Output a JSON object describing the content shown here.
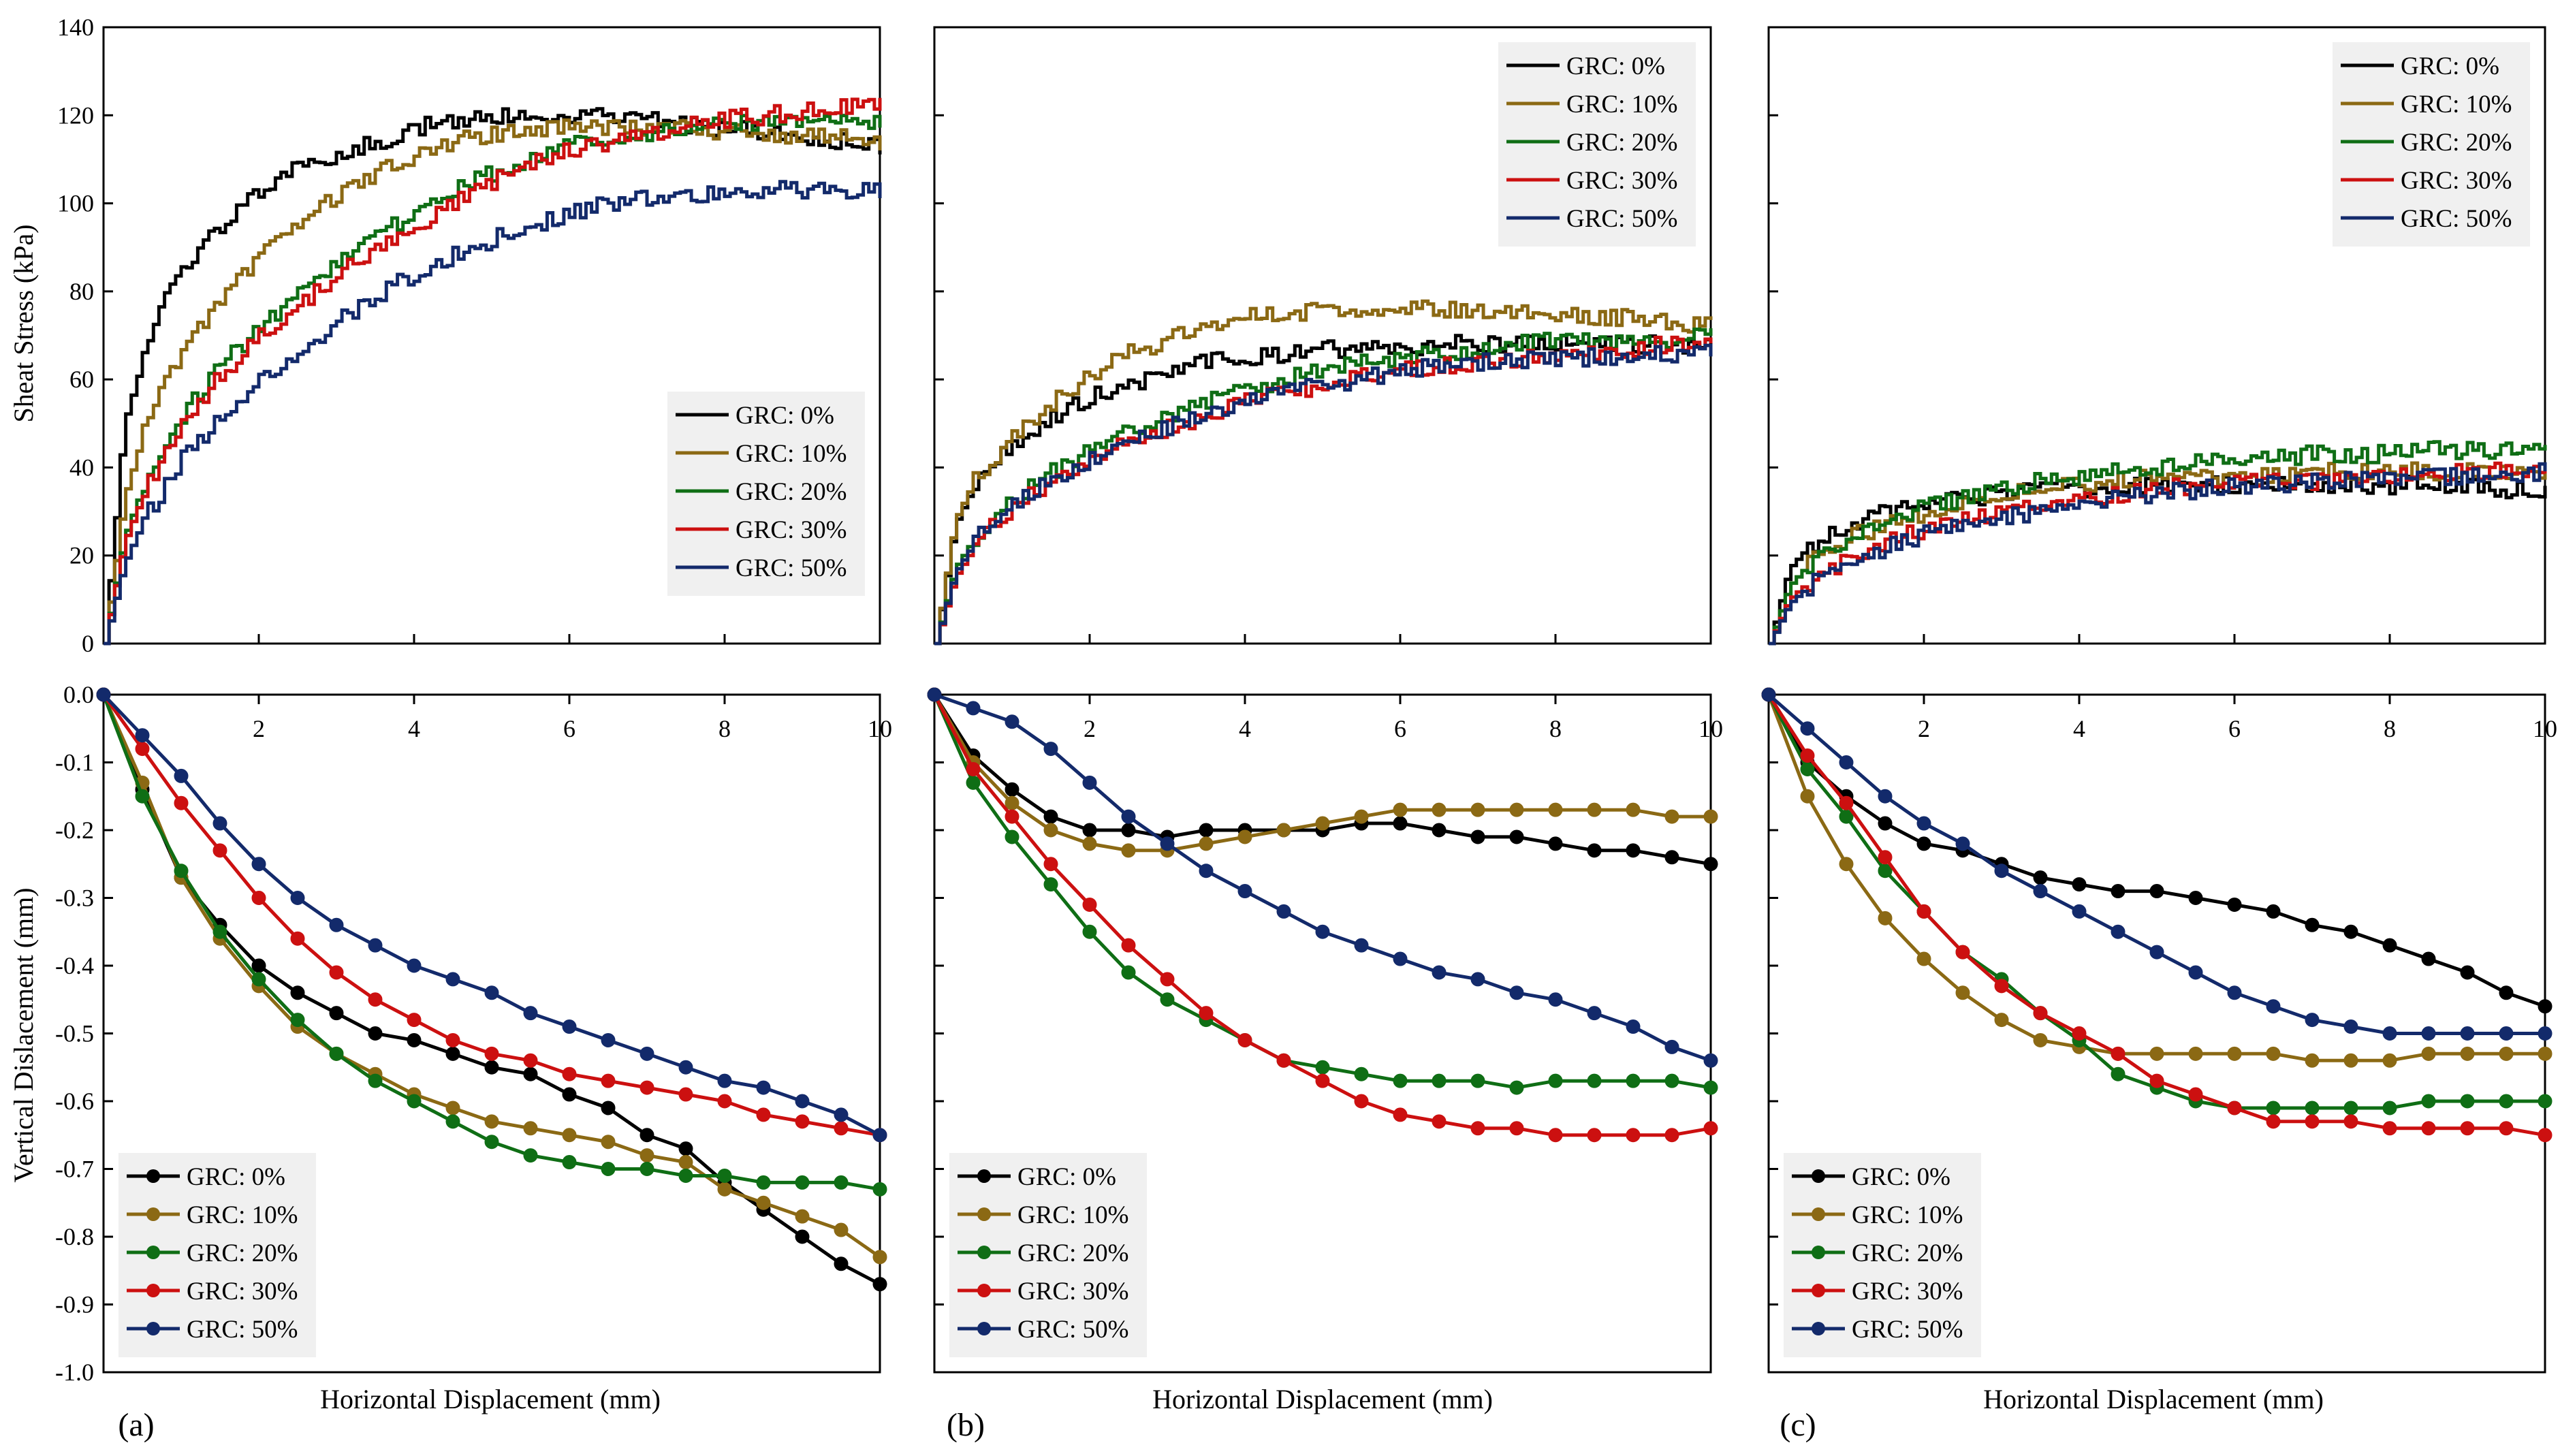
{
  "figure": {
    "colors": {
      "GRC: 0%": "#000000",
      "GRC: 10%": "#8B6914",
      "GRC: 20%": "#0F6E15",
      "GRC: 30%": "#CC1010",
      "GRC: 50%": "#132A6B"
    },
    "panel_labels": [
      "(a)",
      "(b)",
      "(c)"
    ],
    "xlabel": "Horizontal Displacement (mm)",
    "top_ylabel": "Sheat Stress (kPa)",
    "bottom_ylabel": "Vertical Dislacement (mm)"
  },
  "chart_data": [
    {
      "type": "line",
      "panel": "(a)",
      "row": "top",
      "ylabel": "Sheat Stress (kPa)",
      "xlim": [
        0,
        10
      ],
      "ylim": [
        0,
        140
      ],
      "legend_placement": "lower-right",
      "x": [
        0,
        0.25,
        0.5,
        0.75,
        1,
        1.5,
        2,
        2.5,
        3,
        3.5,
        4,
        4.5,
        5,
        5.5,
        6,
        6.5,
        7,
        7.5,
        8,
        8.5,
        9,
        9.5,
        10
      ],
      "series": [
        {
          "name": "GRC: 0%",
          "values": [
            0,
            50,
            65,
            77,
            86,
            95,
            103,
            108,
            111,
            114,
            117,
            119,
            120,
            120,
            120,
            120,
            119,
            118,
            117,
            116,
            115,
            114,
            113
          ]
        },
        {
          "name": "GRC: 10%",
          "values": [
            0,
            33,
            48,
            58,
            67,
            78,
            88,
            96,
            102,
            107,
            111,
            114,
            116,
            117,
            117,
            117,
            117,
            117,
            116,
            116,
            115,
            115,
            114
          ]
        },
        {
          "name": "GRC: 20%",
          "values": [
            0,
            24,
            36,
            44,
            52,
            63,
            72,
            80,
            87,
            93,
            98,
            103,
            107,
            110,
            113,
            115,
            116,
            117,
            118,
            118,
            119,
            119,
            119
          ]
        },
        {
          "name": "GRC: 30%",
          "values": [
            0,
            23,
            34,
            42,
            50,
            61,
            70,
            77,
            84,
            90,
            95,
            100,
            105,
            109,
            112,
            114,
            116,
            118,
            119,
            120,
            121,
            122,
            123
          ]
        },
        {
          "name": "GRC: 50%",
          "values": [
            0,
            18,
            28,
            35,
            42,
            52,
            60,
            67,
            73,
            79,
            84,
            88,
            92,
            95,
            98,
            100,
            101,
            102,
            102,
            103,
            103,
            103,
            103
          ]
        }
      ]
    },
    {
      "type": "line",
      "panel": "(b)",
      "row": "top",
      "xlim": [
        0,
        10
      ],
      "ylim": [
        0,
        140
      ],
      "legend_placement": "top-right",
      "x": [
        0,
        0.25,
        0.5,
        0.75,
        1,
        1.5,
        2,
        2.5,
        3,
        3.5,
        4,
        4.5,
        5,
        5.5,
        6,
        6.5,
        7,
        7.5,
        8,
        8.5,
        9,
        9.5,
        10
      ],
      "series": [
        {
          "name": "GRC: 0%",
          "values": [
            0,
            27,
            36,
            41,
            45,
            51,
            56,
            59,
            62,
            64,
            65,
            66,
            67,
            67,
            67,
            68,
            68,
            68,
            68,
            68,
            68,
            68,
            67
          ]
        },
        {
          "name": "GRC: 10%",
          "values": [
            0,
            28,
            37,
            42,
            47,
            55,
            61,
            66,
            69,
            72,
            74,
            75,
            76,
            76,
            76,
            76,
            76,
            76,
            75,
            74,
            74,
            73,
            72
          ]
        },
        {
          "name": "GRC: 20%",
          "values": [
            0,
            17,
            24,
            29,
            33,
            39,
            44,
            48,
            52,
            55,
            58,
            60,
            62,
            64,
            65,
            66,
            67,
            68,
            69,
            69,
            69,
            69,
            70
          ]
        },
        {
          "name": "GRC: 30%",
          "values": [
            0,
            15,
            22,
            27,
            31,
            37,
            42,
            46,
            49,
            52,
            55,
            57,
            59,
            61,
            62,
            63,
            64,
            65,
            66,
            66,
            67,
            68,
            68
          ]
        },
        {
          "name": "GRC: 50%",
          "values": [
            0,
            16,
            23,
            28,
            32,
            37,
            42,
            46,
            49,
            52,
            55,
            57,
            59,
            60,
            62,
            63,
            64,
            64,
            65,
            65,
            66,
            66,
            66
          ]
        }
      ]
    },
    {
      "type": "line",
      "panel": "(c)",
      "row": "top",
      "xlim": [
        0,
        10
      ],
      "ylim": [
        0,
        140
      ],
      "legend_placement": "top-right",
      "x": [
        0,
        0.25,
        0.5,
        0.75,
        1,
        1.5,
        2,
        2.5,
        3,
        3.5,
        4,
        4.5,
        5,
        5.5,
        6,
        6.5,
        7,
        7.5,
        8,
        8.5,
        9,
        9.5,
        10
      ],
      "series": [
        {
          "name": "GRC: 0%",
          "values": [
            0,
            17,
            22,
            25,
            27,
            30,
            32,
            33,
            34,
            35,
            35,
            36,
            36,
            36,
            36,
            36,
            36,
            36,
            36,
            36,
            36,
            35,
            35
          ]
        },
        {
          "name": "GRC: 10%",
          "values": [
            0,
            13,
            18,
            21,
            24,
            27,
            30,
            32,
            34,
            35,
            36,
            37,
            38,
            38,
            38,
            38,
            39,
            39,
            39,
            39,
            39,
            39,
            39
          ]
        },
        {
          "name": "GRC: 20%",
          "values": [
            0,
            13,
            18,
            21,
            24,
            28,
            31,
            33,
            35,
            37,
            38,
            39,
            40,
            41,
            42,
            42,
            43,
            43,
            43,
            44,
            44,
            44,
            44
          ]
        },
        {
          "name": "GRC: 30%",
          "values": [
            0,
            10,
            14,
            17,
            19,
            23,
            26,
            28,
            30,
            32,
            33,
            34,
            35,
            36,
            36,
            37,
            37,
            38,
            38,
            38,
            39,
            39,
            39
          ]
        },
        {
          "name": "GRC: 50%",
          "values": [
            0,
            9,
            13,
            16,
            18,
            22,
            25,
            27,
            29,
            30,
            32,
            33,
            34,
            35,
            36,
            36,
            37,
            37,
            38,
            38,
            38,
            38,
            39
          ]
        }
      ]
    },
    {
      "type": "line",
      "panel": "(a)",
      "row": "bottom",
      "xlabel": "Horizontal Displacement (mm)",
      "ylabel": "Vertical Dislacement (mm)",
      "xlim": [
        0,
        10
      ],
      "ylim": [
        -1.0,
        0.0
      ],
      "legend_placement": "lower-left",
      "x": [
        0,
        0.5,
        1,
        1.5,
        2,
        2.5,
        3,
        3.5,
        4,
        4.5,
        5,
        5.5,
        6,
        6.5,
        7,
        7.5,
        8,
        8.5,
        9,
        9.5,
        10
      ],
      "series": [
        {
          "name": "GRC: 0%",
          "values": [
            0,
            -0.14,
            -0.27,
            -0.34,
            -0.4,
            -0.44,
            -0.47,
            -0.5,
            -0.51,
            -0.53,
            -0.55,
            -0.56,
            -0.59,
            -0.61,
            -0.65,
            -0.67,
            -0.72,
            -0.76,
            -0.8,
            -0.84,
            -0.87
          ]
        },
        {
          "name": "GRC: 10%",
          "values": [
            0,
            -0.13,
            -0.27,
            -0.36,
            -0.43,
            -0.49,
            -0.53,
            -0.56,
            -0.59,
            -0.61,
            -0.63,
            -0.64,
            -0.65,
            -0.66,
            -0.68,
            -0.69,
            -0.73,
            -0.75,
            -0.77,
            -0.79,
            -0.83
          ]
        },
        {
          "name": "GRC: 20%",
          "values": [
            0,
            -0.15,
            -0.26,
            -0.35,
            -0.42,
            -0.48,
            -0.53,
            -0.57,
            -0.6,
            -0.63,
            -0.66,
            -0.68,
            -0.69,
            -0.7,
            -0.7,
            -0.71,
            -0.71,
            -0.72,
            -0.72,
            -0.72,
            -0.73
          ]
        },
        {
          "name": "GRC: 30%",
          "values": [
            0,
            -0.08,
            -0.16,
            -0.23,
            -0.3,
            -0.36,
            -0.41,
            -0.45,
            -0.48,
            -0.51,
            -0.53,
            -0.54,
            -0.56,
            -0.57,
            -0.58,
            -0.59,
            -0.6,
            -0.62,
            -0.63,
            -0.64,
            -0.65
          ]
        },
        {
          "name": "GRC: 50%",
          "values": [
            0,
            -0.06,
            -0.12,
            -0.19,
            -0.25,
            -0.3,
            -0.34,
            -0.37,
            -0.4,
            -0.42,
            -0.44,
            -0.47,
            -0.49,
            -0.51,
            -0.53,
            -0.55,
            -0.57,
            -0.58,
            -0.6,
            -0.62,
            -0.65
          ]
        }
      ]
    },
    {
      "type": "line",
      "panel": "(b)",
      "row": "bottom",
      "xlabel": "Horizontal Displacement (mm)",
      "xlim": [
        0,
        10
      ],
      "ylim": [
        -1.0,
        0.0
      ],
      "legend_placement": "lower-left",
      "x": [
        0,
        0.5,
        1,
        1.5,
        2,
        2.5,
        3,
        3.5,
        4,
        4.5,
        5,
        5.5,
        6,
        6.5,
        7,
        7.5,
        8,
        8.5,
        9,
        9.5,
        10
      ],
      "series": [
        {
          "name": "GRC: 0%",
          "values": [
            0,
            -0.09,
            -0.14,
            -0.18,
            -0.2,
            -0.2,
            -0.21,
            -0.2,
            -0.2,
            -0.2,
            -0.2,
            -0.19,
            -0.19,
            -0.2,
            -0.21,
            -0.21,
            -0.22,
            -0.23,
            -0.23,
            -0.24,
            -0.25
          ]
        },
        {
          "name": "GRC: 10%",
          "values": [
            0,
            -0.1,
            -0.16,
            -0.2,
            -0.22,
            -0.23,
            -0.23,
            -0.22,
            -0.21,
            -0.2,
            -0.19,
            -0.18,
            -0.17,
            -0.17,
            -0.17,
            -0.17,
            -0.17,
            -0.17,
            -0.17,
            -0.18,
            -0.18
          ]
        },
        {
          "name": "GRC: 20%",
          "values": [
            0,
            -0.13,
            -0.21,
            -0.28,
            -0.35,
            -0.41,
            -0.45,
            -0.48,
            -0.51,
            -0.54,
            -0.55,
            -0.56,
            -0.57,
            -0.57,
            -0.57,
            -0.58,
            -0.57,
            -0.57,
            -0.57,
            -0.57,
            -0.58
          ]
        },
        {
          "name": "GRC: 30%",
          "values": [
            0,
            -0.11,
            -0.18,
            -0.25,
            -0.31,
            -0.37,
            -0.42,
            -0.47,
            -0.51,
            -0.54,
            -0.57,
            -0.6,
            -0.62,
            -0.63,
            -0.64,
            -0.64,
            -0.65,
            -0.65,
            -0.65,
            -0.65,
            -0.64
          ]
        },
        {
          "name": "GRC: 50%",
          "values": [
            0,
            -0.02,
            -0.04,
            -0.08,
            -0.13,
            -0.18,
            -0.22,
            -0.26,
            -0.29,
            -0.32,
            -0.35,
            -0.37,
            -0.39,
            -0.41,
            -0.42,
            -0.44,
            -0.45,
            -0.47,
            -0.49,
            -0.52,
            -0.54
          ]
        }
      ]
    },
    {
      "type": "line",
      "panel": "(c)",
      "row": "bottom",
      "xlabel": "Horizontal Displacement (mm)",
      "xlim": [
        0,
        10
      ],
      "ylim": [
        -1.0,
        0.0
      ],
      "legend_placement": "lower-left",
      "x": [
        0,
        0.5,
        1,
        1.5,
        2,
        2.5,
        3,
        3.5,
        4,
        4.5,
        5,
        5.5,
        6,
        6.5,
        7,
        7.5,
        8,
        8.5,
        9,
        9.5,
        10
      ],
      "series": [
        {
          "name": "GRC: 0%",
          "values": [
            0,
            -0.1,
            -0.15,
            -0.19,
            -0.22,
            -0.23,
            -0.25,
            -0.27,
            -0.28,
            -0.29,
            -0.29,
            -0.3,
            -0.31,
            -0.32,
            -0.34,
            -0.35,
            -0.37,
            -0.39,
            -0.41,
            -0.44,
            -0.46
          ]
        },
        {
          "name": "GRC: 10%",
          "values": [
            0,
            -0.15,
            -0.25,
            -0.33,
            -0.39,
            -0.44,
            -0.48,
            -0.51,
            -0.52,
            -0.53,
            -0.53,
            -0.53,
            -0.53,
            -0.53,
            -0.54,
            -0.54,
            -0.54,
            -0.53,
            -0.53,
            -0.53,
            -0.53
          ]
        },
        {
          "name": "GRC: 20%",
          "values": [
            0,
            -0.11,
            -0.18,
            -0.26,
            -0.32,
            -0.38,
            -0.42,
            -0.47,
            -0.51,
            -0.56,
            -0.58,
            -0.6,
            -0.61,
            -0.61,
            -0.61,
            -0.61,
            -0.61,
            -0.6,
            -0.6,
            -0.6,
            -0.6
          ]
        },
        {
          "name": "GRC: 30%",
          "values": [
            0,
            -0.09,
            -0.16,
            -0.24,
            -0.32,
            -0.38,
            -0.43,
            -0.47,
            -0.5,
            -0.53,
            -0.57,
            -0.59,
            -0.61,
            -0.63,
            -0.63,
            -0.63,
            -0.64,
            -0.64,
            -0.64,
            -0.64,
            -0.65
          ]
        },
        {
          "name": "GRC: 50%",
          "values": [
            0,
            -0.05,
            -0.1,
            -0.15,
            -0.19,
            -0.22,
            -0.26,
            -0.29,
            -0.32,
            -0.35,
            -0.38,
            -0.41,
            -0.44,
            -0.46,
            -0.48,
            -0.49,
            -0.5,
            -0.5,
            -0.5,
            -0.5,
            -0.5
          ]
        }
      ]
    }
  ]
}
